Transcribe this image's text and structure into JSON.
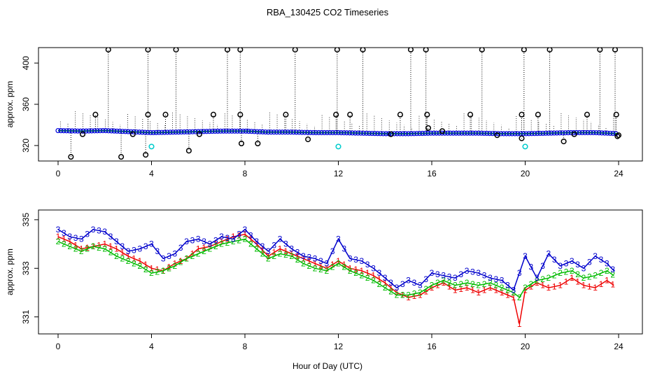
{
  "chart_data": {
    "title": "RBA_130425  CO2 Timeseries",
    "xlabel": "Hour of Day (UTC)",
    "xlim": [
      -1,
      25
    ],
    "xticks": [
      0,
      4,
      8,
      12,
      16,
      20,
      24
    ],
    "xtick_labels": [
      "0",
      "4",
      "8",
      "12",
      "16",
      "20",
      "24"
    ],
    "panels": [
      {
        "type": "scatter",
        "ylabel": "approx. ppm",
        "ylim": [
          305,
          415
        ],
        "yticks": [
          320,
          360,
          400
        ],
        "ytick_labels": [
          "320",
          "360",
          "400"
        ],
        "baseline": [
          [
            0,
            334.5
          ],
          [
            1,
            334.0
          ],
          [
            2,
            334.5
          ],
          [
            3,
            333.5
          ],
          [
            4,
            332.5
          ],
          [
            5,
            333.0
          ],
          [
            6,
            333.5
          ],
          [
            7,
            334.0
          ],
          [
            8,
            334.0
          ],
          [
            9,
            333.0
          ],
          [
            10,
            333.0
          ],
          [
            11,
            332.5
          ],
          [
            12,
            332.5
          ],
          [
            13,
            332.0
          ],
          [
            14,
            331.5
          ],
          [
            15,
            331.5
          ],
          [
            16,
            332.0
          ],
          [
            17,
            332.0
          ],
          [
            18,
            332.0
          ],
          [
            19,
            331.5
          ],
          [
            20,
            331.5
          ],
          [
            21,
            332.0
          ],
          [
            22,
            332.5
          ],
          [
            23,
            332.5
          ],
          [
            24,
            331.5
          ]
        ],
        "outliers_high": [
          [
            2.15,
            413
          ],
          [
            3.85,
            413
          ],
          [
            5.05,
            413
          ],
          [
            7.25,
            413
          ],
          [
            7.8,
            413
          ],
          [
            10.15,
            413
          ],
          [
            11.95,
            413
          ],
          [
            13.05,
            413
          ],
          [
            15.1,
            413
          ],
          [
            15.75,
            413
          ],
          [
            18.15,
            413
          ],
          [
            19.95,
            413
          ],
          [
            21.05,
            413
          ],
          [
            23.2,
            413
          ],
          [
            23.85,
            413
          ],
          [
            1.6,
            350
          ],
          [
            3.85,
            350
          ],
          [
            4.6,
            350
          ],
          [
            6.65,
            350
          ],
          [
            7.8,
            350
          ],
          [
            9.75,
            350
          ],
          [
            11.9,
            350
          ],
          [
            12.5,
            350
          ],
          [
            14.65,
            350
          ],
          [
            15.8,
            350
          ],
          [
            17.65,
            350
          ],
          [
            19.85,
            350
          ],
          [
            20.55,
            350
          ],
          [
            22.65,
            350
          ],
          [
            23.9,
            350
          ]
        ],
        "outliers_low": [
          [
            0.55,
            309
          ],
          [
            2.7,
            309
          ],
          [
            1.05,
            331
          ],
          [
            3.2,
            331
          ],
          [
            3.75,
            311
          ],
          [
            5.6,
            315
          ],
          [
            6.05,
            331
          ],
          [
            7.85,
            322
          ],
          [
            8.55,
            322
          ],
          [
            10.7,
            326
          ],
          [
            14.25,
            331
          ],
          [
            15.85,
            337
          ],
          [
            16.45,
            334
          ],
          [
            18.8,
            330
          ],
          [
            19.85,
            327
          ],
          [
            21.65,
            324
          ],
          [
            22.1,
            331
          ],
          [
            23.95,
            329
          ],
          [
            24.0,
            330
          ]
        ],
        "cyan_points": [
          [
            4.0,
            319
          ],
          [
            12.0,
            319
          ],
          [
            20.0,
            319
          ]
        ]
      },
      {
        "type": "line",
        "ylabel": "approx. ppm",
        "ylim": [
          330.3,
          335.4
        ],
        "yticks": [
          331,
          333,
          335
        ],
        "ytick_labels": [
          "331",
          "333",
          "335"
        ],
        "series": [
          {
            "name": "1",
            "color": "#ee0000",
            "points": [
              [
                0,
                334.3
              ],
              [
                0.5,
                334.1
              ],
              [
                1.0,
                333.8
              ],
              [
                1.5,
                333.9
              ],
              [
                2.0,
                334.0
              ],
              [
                2.5,
                333.8
              ],
              [
                3.0,
                333.5
              ],
              [
                3.5,
                333.3
              ],
              [
                4.0,
                333.0
              ],
              [
                4.5,
                332.9
              ],
              [
                5.0,
                333.2
              ],
              [
                5.5,
                333.4
              ],
              [
                6.0,
                333.8
              ],
              [
                6.5,
                333.9
              ],
              [
                7.0,
                334.1
              ],
              [
                7.5,
                334.3
              ],
              [
                8.0,
                334.4
              ],
              [
                8.5,
                334.0
              ],
              [
                9.0,
                333.5
              ],
              [
                9.5,
                333.8
              ],
              [
                10.0,
                333.6
              ],
              [
                10.5,
                333.4
              ],
              [
                11.0,
                333.2
              ],
              [
                11.5,
                333.0
              ],
              [
                12.0,
                333.3
              ],
              [
                12.5,
                333.0
              ],
              [
                13.0,
                332.9
              ],
              [
                13.5,
                332.7
              ],
              [
                14.0,
                332.4
              ],
              [
                14.5,
                332.0
              ],
              [
                15.0,
                331.8
              ],
              [
                15.5,
                331.9
              ],
              [
                16.0,
                332.2
              ],
              [
                16.5,
                332.4
              ],
              [
                17.0,
                332.1
              ],
              [
                17.5,
                332.2
              ],
              [
                18.0,
                332.0
              ],
              [
                18.5,
                332.2
              ],
              [
                19.0,
                332.0
              ],
              [
                19.5,
                331.8
              ],
              [
                19.75,
                330.7
              ],
              [
                20.0,
                332.1
              ],
              [
                20.5,
                332.4
              ],
              [
                21.0,
                332.2
              ],
              [
                21.5,
                332.3
              ],
              [
                22.0,
                332.6
              ],
              [
                22.5,
                332.3
              ],
              [
                23.0,
                332.2
              ],
              [
                23.5,
                332.5
              ],
              [
                23.8,
                332.3
              ]
            ]
          },
          {
            "name": "2",
            "color": "#00bb00",
            "points": [
              [
                0,
                334.1
              ],
              [
                0.5,
                333.9
              ],
              [
                1.0,
                333.7
              ],
              [
                1.5,
                333.9
              ],
              [
                2.0,
                333.8
              ],
              [
                2.5,
                333.5
              ],
              [
                3.0,
                333.3
              ],
              [
                3.5,
                333.1
              ],
              [
                4.0,
                332.8
              ],
              [
                4.5,
                332.9
              ],
              [
                5.0,
                333.1
              ],
              [
                5.5,
                333.4
              ],
              [
                6.0,
                333.6
              ],
              [
                6.5,
                333.8
              ],
              [
                7.0,
                334.0
              ],
              [
                7.5,
                334.1
              ],
              [
                8.0,
                334.2
              ],
              [
                8.5,
                333.8
              ],
              [
                9.0,
                333.4
              ],
              [
                9.5,
                333.6
              ],
              [
                10.0,
                333.5
              ],
              [
                10.5,
                333.2
              ],
              [
                11.0,
                333.0
              ],
              [
                11.5,
                332.9
              ],
              [
                12.0,
                333.2
              ],
              [
                12.5,
                332.9
              ],
              [
                13.0,
                332.7
              ],
              [
                13.5,
                332.5
              ],
              [
                14.0,
                332.2
              ],
              [
                14.5,
                331.9
              ],
              [
                15.0,
                331.9
              ],
              [
                15.5,
                332.0
              ],
              [
                16.0,
                332.3
              ],
              [
                16.5,
                332.5
              ],
              [
                17.0,
                332.3
              ],
              [
                17.5,
                332.4
              ],
              [
                18.0,
                332.3
              ],
              [
                18.5,
                332.4
              ],
              [
                19.0,
                332.2
              ],
              [
                19.5,
                332.0
              ],
              [
                19.75,
                331.8
              ],
              [
                20.0,
                332.2
              ],
              [
                20.5,
                332.5
              ],
              [
                21.0,
                332.6
              ],
              [
                21.5,
                332.8
              ],
              [
                22.0,
                332.9
              ],
              [
                22.5,
                332.6
              ],
              [
                23.0,
                332.7
              ],
              [
                23.5,
                332.9
              ],
              [
                23.8,
                332.7
              ]
            ]
          },
          {
            "name": "3",
            "color": "#0000cc",
            "points": [
              [
                0,
                334.6
              ],
              [
                0.5,
                334.3
              ],
              [
                1.0,
                334.2
              ],
              [
                1.5,
                334.6
              ],
              [
                2.0,
                334.5
              ],
              [
                2.5,
                334.1
              ],
              [
                3.0,
                333.7
              ],
              [
                3.5,
                333.8
              ],
              [
                4.0,
                334.0
              ],
              [
                4.5,
                333.4
              ],
              [
                5.0,
                333.6
              ],
              [
                5.5,
                334.1
              ],
              [
                6.0,
                334.2
              ],
              [
                6.5,
                334.0
              ],
              [
                7.0,
                334.3
              ],
              [
                7.5,
                334.2
              ],
              [
                8.0,
                334.6
              ],
              [
                8.5,
                334.1
              ],
              [
                9.0,
                333.7
              ],
              [
                9.5,
                334.2
              ],
              [
                10.0,
                333.8
              ],
              [
                10.5,
                333.5
              ],
              [
                11.0,
                333.4
              ],
              [
                11.5,
                333.2
              ],
              [
                12.0,
                334.2
              ],
              [
                12.5,
                333.4
              ],
              [
                13.0,
                333.3
              ],
              [
                13.5,
                333.0
              ],
              [
                14.0,
                332.6
              ],
              [
                14.5,
                332.2
              ],
              [
                15.0,
                332.5
              ],
              [
                15.5,
                332.3
              ],
              [
                16.0,
                332.8
              ],
              [
                16.5,
                332.7
              ],
              [
                17.0,
                332.6
              ],
              [
                17.5,
                332.9
              ],
              [
                18.0,
                332.8
              ],
              [
                18.5,
                332.6
              ],
              [
                19.0,
                332.5
              ],
              [
                19.5,
                332.1
              ],
              [
                20.0,
                333.5
              ],
              [
                20.5,
                332.6
              ],
              [
                21.0,
                333.6
              ],
              [
                21.5,
                333.1
              ],
              [
                22.0,
                333.3
              ],
              [
                22.5,
                333.0
              ],
              [
                23.0,
                333.5
              ],
              [
                23.5,
                333.2
              ],
              [
                23.8,
                332.9
              ]
            ]
          }
        ]
      }
    ]
  }
}
